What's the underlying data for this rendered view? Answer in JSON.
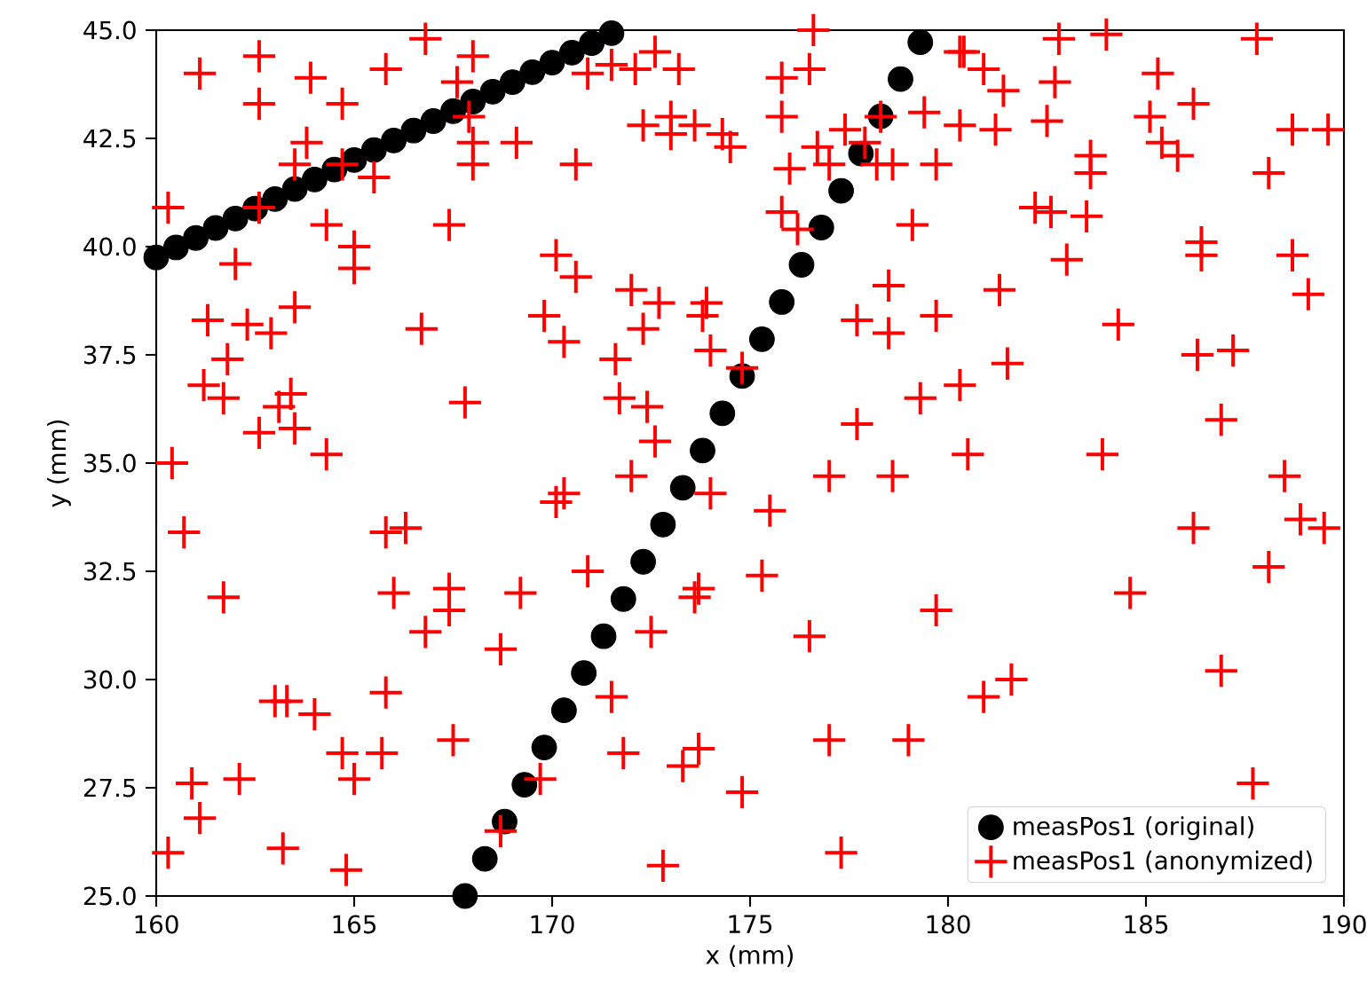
{
  "chart_data": {
    "type": "scatter",
    "xlabel": "x (mm)",
    "ylabel": "y (mm)",
    "xlim": [
      160,
      190
    ],
    "ylim": [
      25,
      45
    ],
    "xticks": [
      160,
      165,
      170,
      175,
      180,
      185,
      190
    ],
    "yticks": [
      {
        "value": 25,
        "label": "25.0"
      },
      {
        "value": 27.5,
        "label": "27.5"
      },
      {
        "value": 30,
        "label": "30.0"
      },
      {
        "value": 32.5,
        "label": "32.5"
      },
      {
        "value": 35,
        "label": "35.0"
      },
      {
        "value": 37.5,
        "label": "37.5"
      },
      {
        "value": 40,
        "label": "40.0"
      },
      {
        "value": 42.5,
        "label": "42.5"
      },
      {
        "value": 45,
        "label": "45.0"
      }
    ],
    "legend": "bottom right",
    "series": [
      {
        "name": "measPos1 (original)",
        "color": "#000000",
        "marker": "circle",
        "x": [
          160,
          160.5,
          161,
          161.5,
          162,
          162.5,
          163,
          163.5,
          164,
          164.5,
          165,
          165.5,
          166,
          166.5,
          167,
          167.5,
          168,
          168.5,
          169,
          169.5,
          170,
          170.5,
          171,
          171.5,
          167.8,
          168.3,
          168.8,
          169.3,
          169.8,
          170.3,
          170.8,
          171.3,
          171.8,
          172.3,
          172.8,
          173.3,
          173.8,
          174.3,
          174.8,
          175.3,
          175.8,
          176.3,
          176.8,
          177.3,
          177.8,
          178.3,
          178.8,
          179.3
        ],
        "values": [
          39.75,
          39.98,
          40.2,
          40.43,
          40.65,
          40.88,
          41.1,
          41.33,
          41.55,
          41.78,
          42.0,
          42.23,
          42.45,
          42.68,
          42.9,
          43.13,
          43.35,
          43.58,
          43.8,
          44.03,
          44.25,
          44.48,
          44.7,
          44.93,
          25.0,
          25.86,
          26.72,
          27.57,
          28.43,
          29.29,
          30.15,
          31.0,
          31.86,
          32.72,
          33.58,
          34.43,
          35.29,
          36.15,
          37.01,
          37.86,
          38.72,
          39.58,
          40.44,
          41.29,
          42.15,
          43.01,
          43.87,
          44.72
        ]
      },
      {
        "name": "measPos1 (anonymized)",
        "color": "#ff0000",
        "marker": "cross",
        "x": [
          161.1,
          162.6,
          163.9,
          162.6,
          164.7,
          165.8,
          166.8,
          168.0,
          167.6,
          167.9,
          168.0,
          169.1,
          168.0,
          163.8,
          163.5,
          164.7,
          165.5,
          162.6,
          164.3,
          165.0,
          165.0,
          167.4,
          162.0,
          160.3,
          163.5,
          161.3,
          162.3,
          162.9,
          166.7,
          161.8,
          161.2,
          161.7,
          163.4,
          163.1,
          167.8,
          162.6,
          163.5,
          164.3,
          169.8,
          170.1,
          170.6,
          170.9,
          171.5,
          172.1,
          172.6,
          172.3,
          173.0,
          173.0,
          174.3,
          174.5,
          170.6,
          172.0,
          172.7,
          170.3,
          172.3,
          173.9,
          173.8,
          171.6,
          174.0,
          174.8,
          171.7,
          172.4,
          172.6,
          175.8,
          176.2,
          176.0,
          179.1,
          178.5,
          177.7,
          178.5,
          179.7,
          179.3,
          177.7,
          173.2,
          173.6,
          175.8,
          175.8,
          176.6,
          176.5,
          176.7,
          177.4,
          177.0,
          177.9,
          178.2,
          178.3,
          179.4,
          178.6,
          179.7,
          180.3,
          180.4,
          180.9,
          181.4,
          181.2,
          180.3,
          182.7,
          182.5,
          182.8,
          184.0,
          185.3,
          186.2,
          185.1,
          185.4,
          185.8,
          187.8,
          188.7,
          189.6,
          188.1,
          183.6,
          183.6,
          182.2,
          182.6,
          183.5,
          183.0,
          186.4,
          186.4,
          188.7,
          189.1,
          181.3,
          184.3,
          186.3,
          187.2,
          181.5,
          180.3,
          186.9,
          180.5,
          183.9,
          188.5,
          188.9,
          189.5,
          186.2,
          188.1,
          184.6,
          181.6,
          180.9,
          186.9,
          187.7,
          186.4,
          170.3,
          172.0,
          174.0,
          177.0,
          178.6,
          175.5,
          170.9,
          173.7,
          173.6,
          175.3,
          172.5,
          176.5,
          179.7,
          171.5,
          171.8,
          173.3,
          173.7,
          174.8,
          177.0,
          179.0,
          172.8,
          177.3,
          160.7,
          161.7,
          165.8,
          166.3,
          166.0,
          167.4,
          167.4,
          166.8,
          168.7,
          169.2,
          170.1,
          163.0,
          163.3,
          164.0,
          165.8,
          167.5,
          164.7,
          165.7,
          165.0,
          160.9,
          162.1,
          161.1,
          160.3,
          163.2,
          164.8,
          169.7,
          168.7,
          160.4
        ],
        "values": [
          44.0,
          44.4,
          43.9,
          43.3,
          43.3,
          44.1,
          44.8,
          44.4,
          43.8,
          43.0,
          42.4,
          42.4,
          41.9,
          42.4,
          41.9,
          41.9,
          41.6,
          40.9,
          40.5,
          40.0,
          39.5,
          40.5,
          39.6,
          40.9,
          38.6,
          38.3,
          38.2,
          38.0,
          38.1,
          37.4,
          36.8,
          36.5,
          36.6,
          36.3,
          36.4,
          35.7,
          35.8,
          35.2,
          38.4,
          39.8,
          41.9,
          44.0,
          44.2,
          44.1,
          44.5,
          42.8,
          43.0,
          42.6,
          42.6,
          42.3,
          39.3,
          39.0,
          38.7,
          37.8,
          38.1,
          38.7,
          38.4,
          37.4,
          37.6,
          37.2,
          36.5,
          36.3,
          35.5,
          40.8,
          40.4,
          41.8,
          40.5,
          39.1,
          38.3,
          38.0,
          38.4,
          36.5,
          35.9,
          44.1,
          42.8,
          43.9,
          43.0,
          45.0,
          44.1,
          42.3,
          42.7,
          41.9,
          42.4,
          41.9,
          43.0,
          43.1,
          41.9,
          41.9,
          44.5,
          44.5,
          44.1,
          43.6,
          42.7,
          42.8,
          43.8,
          42.9,
          44.8,
          44.9,
          44.0,
          43.3,
          43.0,
          42.4,
          42.1,
          44.8,
          42.7,
          42.7,
          41.7,
          42.1,
          41.7,
          40.9,
          40.8,
          40.7,
          39.7,
          40.1,
          39.8,
          39.8,
          38.9,
          39.0,
          38.2,
          37.5,
          37.6,
          37.3,
          36.8,
          36.0,
          35.2,
          35.2,
          34.7,
          33.7,
          33.5,
          33.5,
          32.6,
          32.0,
          30.0,
          29.6,
          30.2,
          27.6,
          null,
          34.3,
          34.7,
          34.3,
          34.7,
          34.7,
          33.9,
          32.5,
          32.1,
          31.9,
          32.4,
          31.1,
          31.0,
          31.6,
          29.6,
          28.3,
          28.0,
          28.4,
          27.4,
          28.6,
          28.6,
          25.7,
          26.0,
          33.4,
          31.9,
          33.4,
          33.5,
          32.0,
          32.1,
          31.6,
          31.1,
          30.7,
          32.0,
          34.1,
          29.5,
          29.5,
          29.2,
          29.7,
          28.6,
          28.3,
          28.3,
          27.7,
          27.6,
          27.7,
          26.8,
          26.0,
          26.1,
          25.6,
          27.7,
          26.5,
          35.0
        ]
      }
    ]
  }
}
